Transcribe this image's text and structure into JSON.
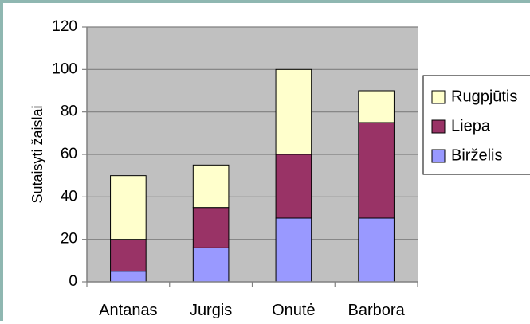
{
  "chart_data": {
    "type": "bar",
    "stacked": true,
    "categories": [
      "Antanas",
      "Jurgis",
      "Onutė",
      "Barbora"
    ],
    "series": [
      {
        "name": "Birželis",
        "values": [
          5,
          16,
          30,
          30
        ],
        "color": "#9999ff"
      },
      {
        "name": "Liepa",
        "values": [
          15,
          19,
          30,
          45
        ],
        "color": "#993366"
      },
      {
        "name": "Rugpjūtis",
        "values": [
          30,
          20,
          40,
          15
        ],
        "color": "#ffffcc"
      }
    ],
    "ylabel": "Sutaisyti žaislai",
    "xlabel": "",
    "ylim": [
      0,
      120
    ],
    "yticks": [
      0,
      20,
      40,
      60,
      80,
      100,
      120
    ],
    "grid": true,
    "plot_background": "#c0c0c0",
    "legend_position": "right",
    "legend_order": [
      "Rugpjūtis",
      "Liepa",
      "Birželis"
    ]
  }
}
